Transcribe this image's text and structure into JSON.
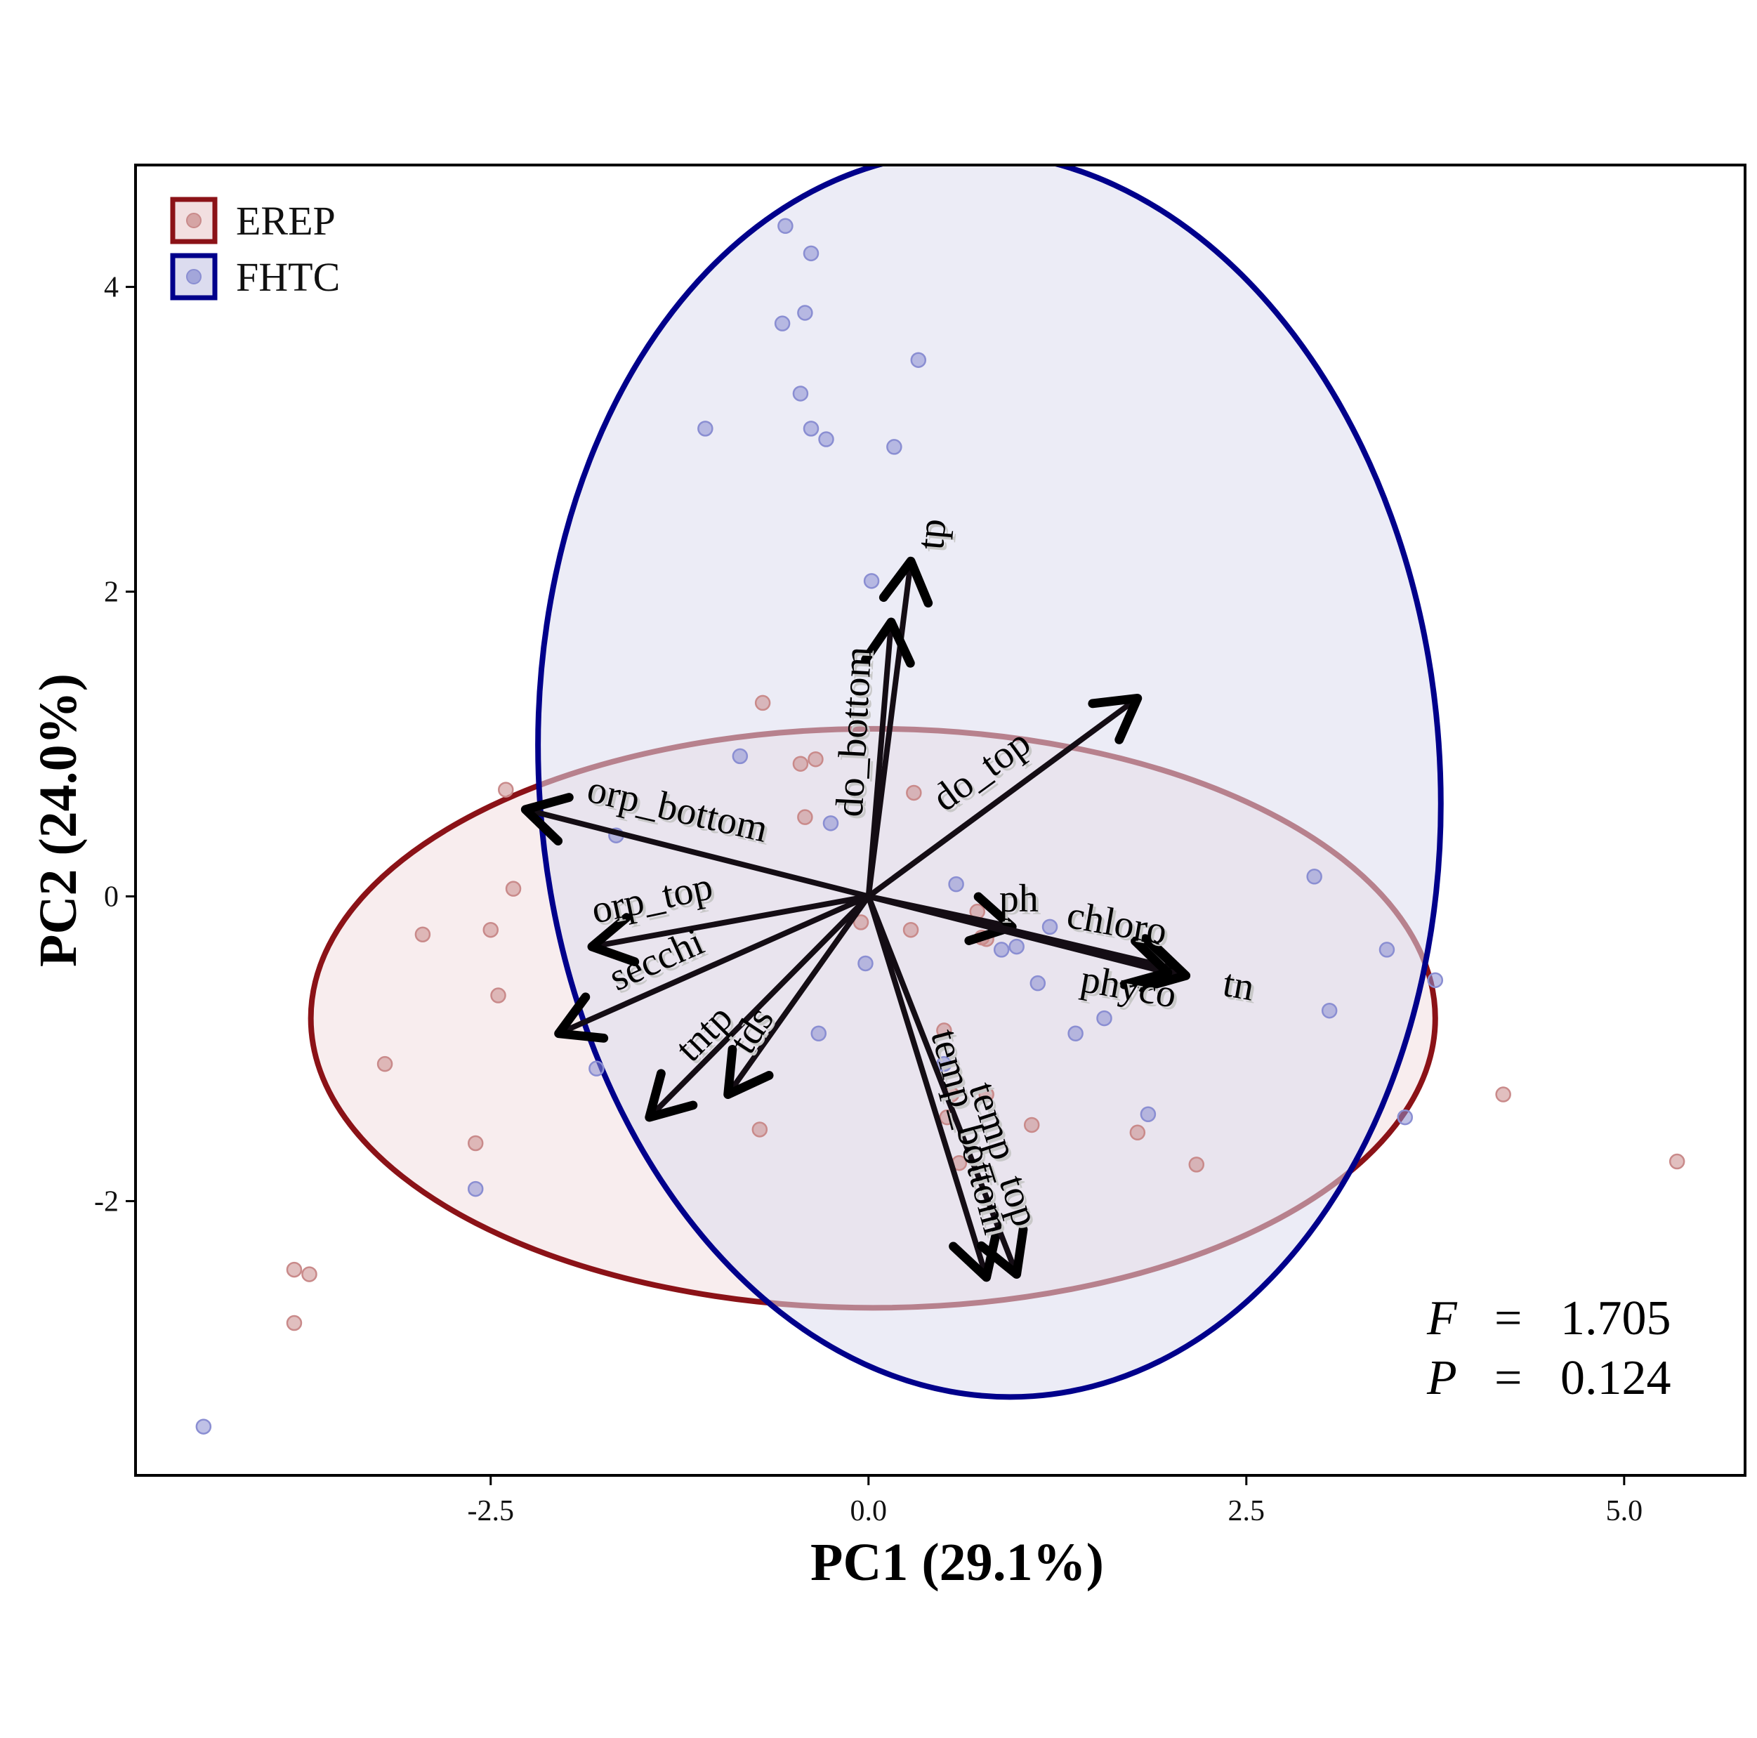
{
  "chart_data": {
    "type": "scatter",
    "subtype": "pca-biplot",
    "title": "",
    "xlabel": "PC1 (29.1%)",
    "ylabel": "PC2 (24.0%)",
    "xlim": [
      -4.85,
      5.8
    ],
    "ylim": [
      -3.8,
      4.8
    ],
    "x_ticks": [
      -2.5,
      0.0,
      2.5,
      5.0
    ],
    "x_tick_labels": [
      "-2.5",
      "0.0",
      "2.5",
      "5.0"
    ],
    "y_ticks": [
      -2,
      0,
      2,
      4
    ],
    "y_tick_labels": [
      "-2",
      "0",
      "2",
      "4"
    ],
    "grid": false,
    "legend_position": "top-left",
    "series": [
      {
        "name": "EREP",
        "color": "#c98a8a",
        "ellipse_color": "#8b1217",
        "ellipse_fill": "#f2dfe0",
        "ellipse_center": [
          0.03,
          -0.8
        ],
        "ellipse_radii": [
          3.72,
          1.9
        ],
        "ellipse_angle_deg": 0,
        "points": [
          [
            -2.4,
            0.7
          ],
          [
            -2.35,
            0.05
          ],
          [
            -2.5,
            -0.22
          ],
          [
            -2.45,
            -0.65
          ],
          [
            -2.95,
            -0.25
          ],
          [
            -3.2,
            -1.1
          ],
          [
            -2.6,
            -1.62
          ],
          [
            -3.8,
            -2.45
          ],
          [
            -3.7,
            -2.48
          ],
          [
            -3.8,
            -2.8
          ],
          [
            -0.7,
            1.27
          ],
          [
            -0.35,
            0.9
          ],
          [
            -0.45,
            0.87
          ],
          [
            -0.42,
            0.52
          ],
          [
            0.3,
            0.68
          ],
          [
            -0.05,
            -0.17
          ],
          [
            0.28,
            -0.22
          ],
          [
            0.72,
            -0.1
          ],
          [
            0.75,
            -0.27
          ],
          [
            0.78,
            -0.28
          ],
          [
            0.5,
            -0.88
          ],
          [
            0.55,
            -1.3
          ],
          [
            0.78,
            -1.3
          ],
          [
            0.52,
            -1.45
          ],
          [
            -0.72,
            -1.53
          ],
          [
            0.6,
            -1.75
          ],
          [
            1.08,
            -1.5
          ],
          [
            1.78,
            -1.55
          ],
          [
            2.17,
            -1.76
          ],
          [
            4.2,
            -1.3
          ],
          [
            5.35,
            -1.74
          ]
        ]
      },
      {
        "name": "FHTC",
        "color": "#8a8ed2",
        "ellipse_color": "#00008b",
        "ellipse_fill": "#dcdcef",
        "ellipse_center": [
          0.8,
          0.8
        ],
        "ellipse_radii": [
          2.98,
          4.09
        ],
        "ellipse_angle_deg": 4,
        "points": [
          [
            -0.55,
            4.4
          ],
          [
            -0.38,
            4.22
          ],
          [
            -0.42,
            3.83
          ],
          [
            -0.57,
            3.76
          ],
          [
            0.33,
            3.52
          ],
          [
            -0.45,
            3.3
          ],
          [
            -0.38,
            3.07
          ],
          [
            -0.28,
            3.0
          ],
          [
            -1.08,
            3.07
          ],
          [
            0.17,
            2.95
          ],
          [
            0.02,
            2.07
          ],
          [
            -0.85,
            0.92
          ],
          [
            -0.25,
            0.48
          ],
          [
            -1.67,
            0.4
          ],
          [
            0.58,
            0.08
          ],
          [
            1.2,
            -0.2
          ],
          [
            0.98,
            -0.33
          ],
          [
            0.88,
            -0.35
          ],
          [
            1.12,
            -0.57
          ],
          [
            -0.02,
            -0.44
          ],
          [
            1.37,
            -0.9
          ],
          [
            1.56,
            -0.8
          ],
          [
            -0.33,
            -0.9
          ],
          [
            -1.8,
            -1.13
          ],
          [
            0.5,
            -1.1
          ],
          [
            -2.6,
            -1.92
          ],
          [
            1.85,
            -1.43
          ],
          [
            2.95,
            0.13
          ],
          [
            3.05,
            -0.75
          ],
          [
            3.43,
            -0.35
          ],
          [
            3.75,
            -0.55
          ],
          [
            3.55,
            -1.45
          ],
          [
            -4.4,
            -3.48
          ]
        ]
      }
    ],
    "loadings": [
      {
        "label": "tp",
        "x": 0.28,
        "y": 2.2
      },
      {
        "label": "do_bottom",
        "x": 0.15,
        "y": 1.8
      },
      {
        "label": "do_top",
        "x": 1.78,
        "y": 1.3
      },
      {
        "label": "orp_bottom",
        "x": -2.27,
        "y": 0.57
      },
      {
        "label": "ph",
        "x": 0.95,
        "y": -0.2
      },
      {
        "label": "chloro",
        "x": 2.05,
        "y": -0.48
      },
      {
        "label": "tn",
        "x": 2.1,
        "y": -0.52
      },
      {
        "label": "phyco",
        "x": 1.98,
        "y": -0.5
      },
      {
        "label": "orp_top",
        "x": -1.83,
        "y": -0.33
      },
      {
        "label": "secchi",
        "x": -2.05,
        "y": -0.9
      },
      {
        "label": "tntp",
        "x": -1.45,
        "y": -1.45
      },
      {
        "label": "tds",
        "x": -0.93,
        "y": -1.3
      },
      {
        "label": "temp_bottom",
        "x": 0.78,
        "y": -2.5
      },
      {
        "label": "temp_top",
        "x": 0.98,
        "y": -2.48
      }
    ],
    "annotations": [
      {
        "label": "F",
        "value": "1.705"
      },
      {
        "label": "P",
        "value": "0.124"
      }
    ]
  }
}
